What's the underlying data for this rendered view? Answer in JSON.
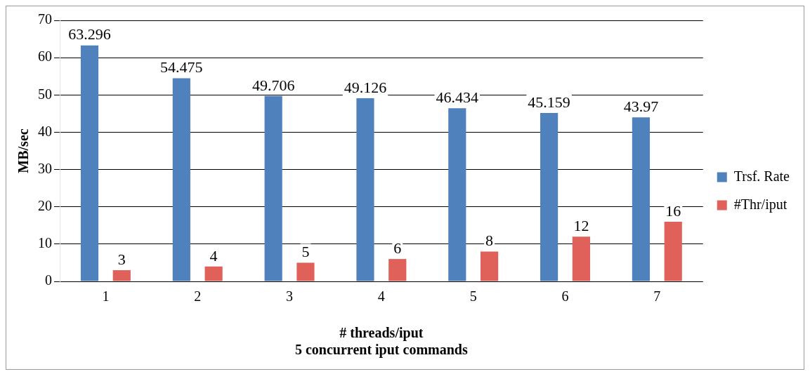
{
  "chart_data": {
    "type": "bar",
    "ylabel": "MB/sec",
    "xlabel": "# threads/iput\n5 concurrent iput commands",
    "categories": [
      "1",
      "2",
      "3",
      "4",
      "5",
      "6",
      "7"
    ],
    "series": [
      {
        "name": "Trsf. Rate",
        "color": "#4f81bd",
        "values": [
          63.296,
          54.475,
          49.706,
          49.126,
          46.434,
          45.159,
          43.97
        ]
      },
      {
        "name": "#Thr/iput",
        "color": "#e0605a",
        "values": [
          3,
          4,
          5,
          6,
          8,
          12,
          16
        ]
      }
    ],
    "ylim": [
      0,
      70
    ],
    "yticks": [
      0,
      10,
      20,
      30,
      40,
      50,
      60,
      70
    ],
    "grid": "y",
    "legend": "right",
    "data_labels": true
  }
}
